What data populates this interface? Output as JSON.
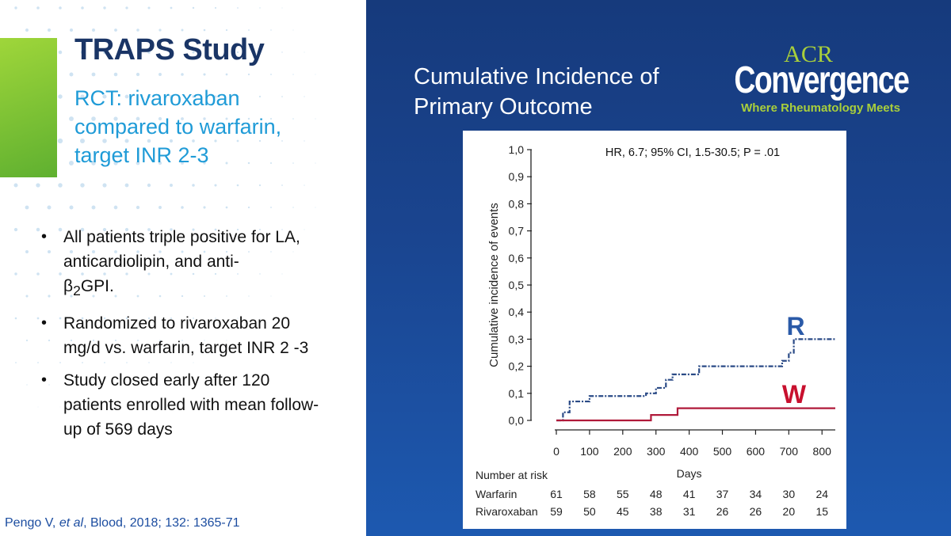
{
  "left": {
    "title": "TRAPS Study",
    "subtitle": "RCT: rivaroxaban compared to warfarin, target INR 2-3",
    "bullets": {
      "b1_text": "All patients triple positive for LA, anticardiolipin, and anti-",
      "b1_beta": "β",
      "b1_sub": "2",
      "b1_tail": "GPI.",
      "b2": "Randomized to rivaroxaban 20 mg/d vs. warfarin, target INR 2 -3",
      "b3": "Study closed early after 120 patients enrolled with mean follow-up of 569 days"
    },
    "citation_author": "Pengo V, ",
    "citation_etal": "et al",
    "citation_rest": ", Blood, 2018; 132: 1365-71"
  },
  "right": {
    "chart_title": "Cumulative Incidence of Primary Outcome",
    "logo_acr": "ACR",
    "logo_convergence": "Convergence",
    "logo_tagline": "Where Rheumatology Meets"
  },
  "colors": {
    "warfarin": "#b01a3a",
    "rivaroxaban": "#2a4a86",
    "label_R": "#2a5aa8",
    "label_W": "#c8102e"
  },
  "chart_data": {
    "type": "line",
    "annotation": "HR, 6.7; 95% CI, 1.5-30.5; P = .01",
    "ylabel": "Cumulative incidence of events",
    "xlabel": "Days",
    "ylim": [
      0,
      1.0
    ],
    "xlim": [
      0,
      840
    ],
    "yticks": [
      "0,0",
      "0,1",
      "0,2",
      "0,3",
      "0,4",
      "0,5",
      "0,6",
      "0,7",
      "0,8",
      "0,9",
      "1,0"
    ],
    "xticks": [
      0,
      100,
      200,
      300,
      400,
      500,
      600,
      700,
      800
    ],
    "series": [
      {
        "name": "R",
        "style": "dashdot",
        "steps": [
          [
            0,
            0.0
          ],
          [
            20,
            0.03
          ],
          [
            40,
            0.07
          ],
          [
            100,
            0.09
          ],
          [
            270,
            0.1
          ],
          [
            300,
            0.12
          ],
          [
            330,
            0.15
          ],
          [
            350,
            0.17
          ],
          [
            430,
            0.2
          ],
          [
            680,
            0.22
          ],
          [
            700,
            0.25
          ],
          [
            715,
            0.3
          ],
          [
            850,
            0.3
          ]
        ]
      },
      {
        "name": "W",
        "style": "solid",
        "steps": [
          [
            0,
            0.0
          ],
          [
            285,
            0.02
          ],
          [
            365,
            0.045
          ],
          [
            850,
            0.045
          ]
        ]
      }
    ],
    "risk_table": {
      "header": "Number at risk",
      "rows": [
        {
          "label": "Warfarin",
          "values": [
            61,
            58,
            55,
            48,
            41,
            37,
            34,
            30,
            24
          ]
        },
        {
          "label": "Rivaroxaban",
          "values": [
            59,
            50,
            45,
            38,
            31,
            26,
            26,
            20,
            15
          ]
        }
      ]
    }
  }
}
